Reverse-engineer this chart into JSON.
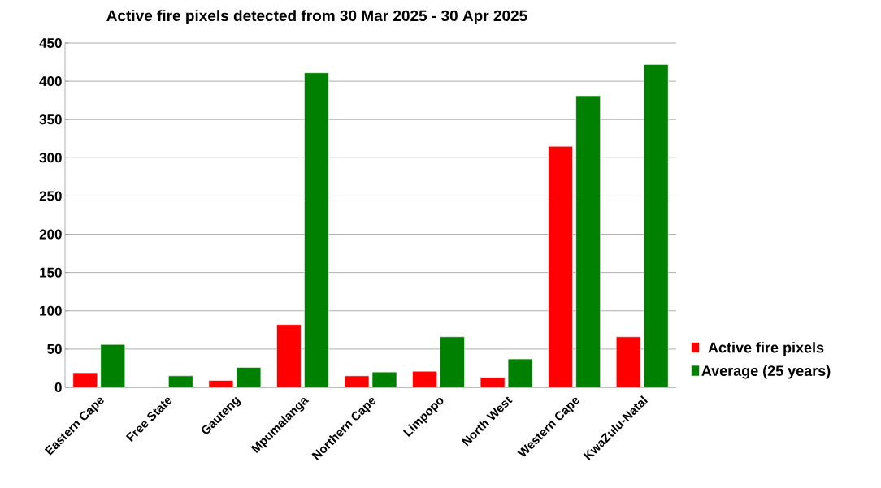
{
  "chart_data": {
    "type": "bar",
    "title": "Active fire pixels detected from 30 Mar 2025 - 30 Apr 2025",
    "categories": [
      "Eastern Cape",
      "Free State",
      "Gauteng",
      "Mpumalanga",
      "Northern Cape",
      "Limpopo",
      "North West",
      "Western Cape",
      "KwaZulu-Natal"
    ],
    "series": [
      {
        "name": "Active fire pixels",
        "color": "#ff0000",
        "values": [
          19,
          null,
          9,
          82,
          15,
          21,
          13,
          315,
          66
        ]
      },
      {
        "name": "Average (25 years)",
        "color": "#008000",
        "values": [
          56,
          15,
          26,
          411,
          20,
          66,
          37,
          381,
          422
        ]
      }
    ],
    "ylim": [
      0,
      450
    ],
    "yticks": [
      0,
      50,
      100,
      150,
      200,
      250,
      300,
      350,
      400,
      450
    ],
    "grid": "y",
    "legend": "right"
  }
}
